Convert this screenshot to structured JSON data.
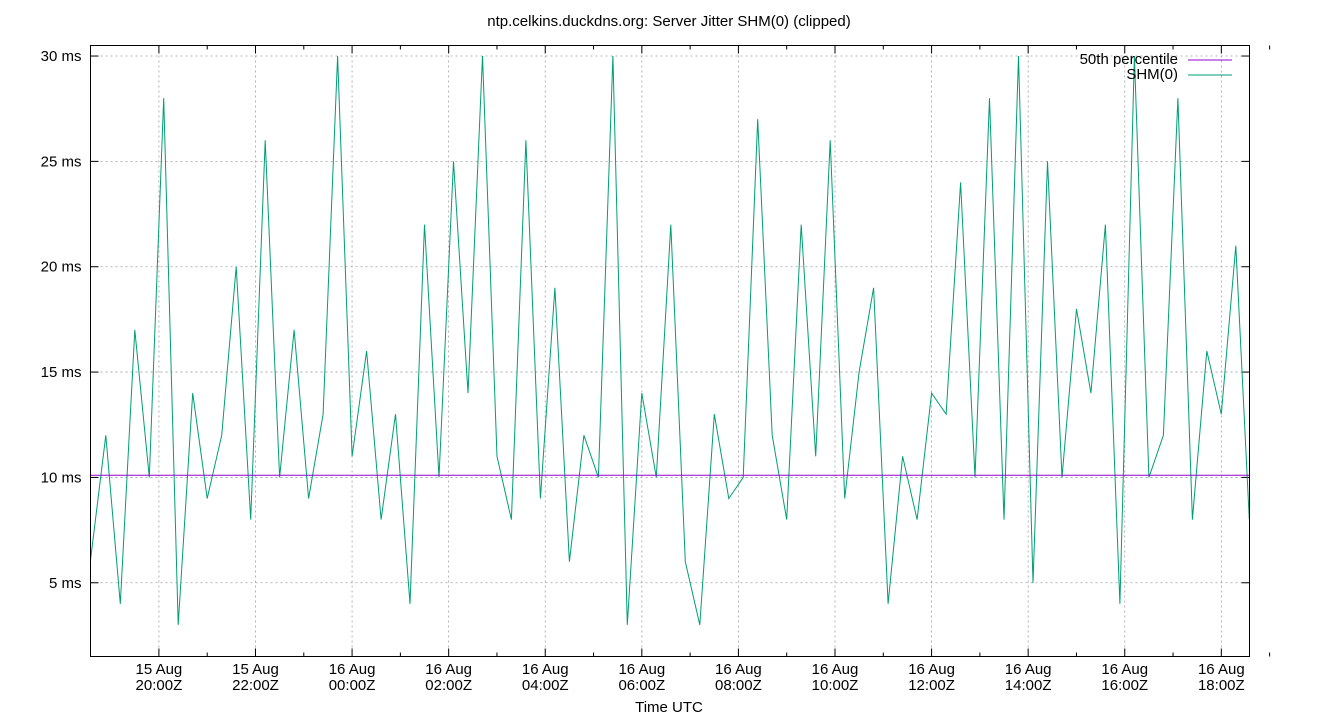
{
  "chart_data": {
    "type": "line",
    "title": "ntp.celkins.duckdns.org: Server Jitter SHM(0) (clipped)",
    "xlabel": "Time UTC",
    "ylabel": "",
    "x_range": [
      "2023-08-15T18:35:00Z",
      "2023-08-16T18:35:00Z"
    ],
    "ylim": [
      1.5,
      30.5
    ],
    "y_unit": "ms",
    "grid": true,
    "legend_position": "top-right",
    "x_ticks": [
      {
        "date": "15 Aug",
        "time": "20:00Z"
      },
      {
        "date": "15 Aug",
        "time": "22:00Z"
      },
      {
        "date": "16 Aug",
        "time": "00:00Z"
      },
      {
        "date": "16 Aug",
        "time": "02:00Z"
      },
      {
        "date": "16 Aug",
        "time": "04:00Z"
      },
      {
        "date": "16 Aug",
        "time": "06:00Z"
      },
      {
        "date": "16 Aug",
        "time": "08:00Z"
      },
      {
        "date": "16 Aug",
        "time": "10:00Z"
      },
      {
        "date": "16 Aug",
        "time": "12:00Z"
      },
      {
        "date": "16 Aug",
        "time": "14:00Z"
      },
      {
        "date": "16 Aug",
        "time": "16:00Z"
      },
      {
        "date": "16 Aug",
        "time": "18:00Z"
      }
    ],
    "y_ticks": [
      "5 ms",
      "10 ms",
      "15 ms",
      "20 ms",
      "25 ms",
      "30 ms"
    ],
    "series": [
      {
        "name": "50th percentile",
        "color": "#9400d3",
        "kind": "constant",
        "value": 10.1
      },
      {
        "name": "SHM(0)",
        "color": "#009e73",
        "kind": "line",
        "x_hours_utc": [
          18.58,
          18.9,
          19.2,
          19.5,
          19.8,
          20.1,
          20.4,
          20.7,
          21.0,
          21.3,
          21.6,
          21.9,
          22.2,
          22.5,
          22.8,
          23.1,
          23.4,
          23.7,
          24.0,
          24.3,
          24.6,
          24.9,
          25.2,
          25.5,
          25.8,
          26.1,
          26.4,
          26.7,
          27.0,
          27.3,
          27.6,
          27.9,
          28.2,
          28.5,
          28.8,
          29.1,
          29.4,
          29.7,
          30.0,
          30.3,
          30.6,
          30.9,
          31.2,
          31.5,
          31.8,
          32.1,
          32.4,
          32.7,
          33.0,
          33.3,
          33.6,
          33.9,
          34.2,
          34.5,
          34.8,
          35.1,
          35.4,
          35.7,
          36.0,
          36.3,
          36.6,
          36.9,
          37.2,
          37.5,
          37.8,
          38.1,
          38.4,
          38.7,
          39.0,
          39.3,
          39.6,
          39.9,
          40.2,
          40.5,
          40.8,
          41.1,
          41.4,
          41.7,
          42.0,
          42.3,
          42.58
        ],
        "values": [
          6,
          12,
          4,
          17,
          10,
          28,
          3,
          14,
          9,
          12,
          20,
          8,
          26,
          10,
          17,
          9,
          13,
          30,
          11,
          16,
          8,
          13,
          4,
          22,
          10,
          25,
          14,
          30,
          11,
          8,
          26,
          9,
          19,
          6,
          12,
          10,
          30,
          3,
          14,
          10,
          22,
          6,
          3,
          13,
          9,
          10,
          27,
          12,
          8,
          22,
          11,
          26,
          9,
          15,
          19,
          4,
          11,
          8,
          14,
          13,
          24,
          10,
          28,
          8,
          30,
          5,
          25,
          10,
          18,
          14,
          22,
          4,
          30,
          10,
          12,
          28,
          8,
          16,
          13,
          21,
          8
        ]
      }
    ]
  }
}
